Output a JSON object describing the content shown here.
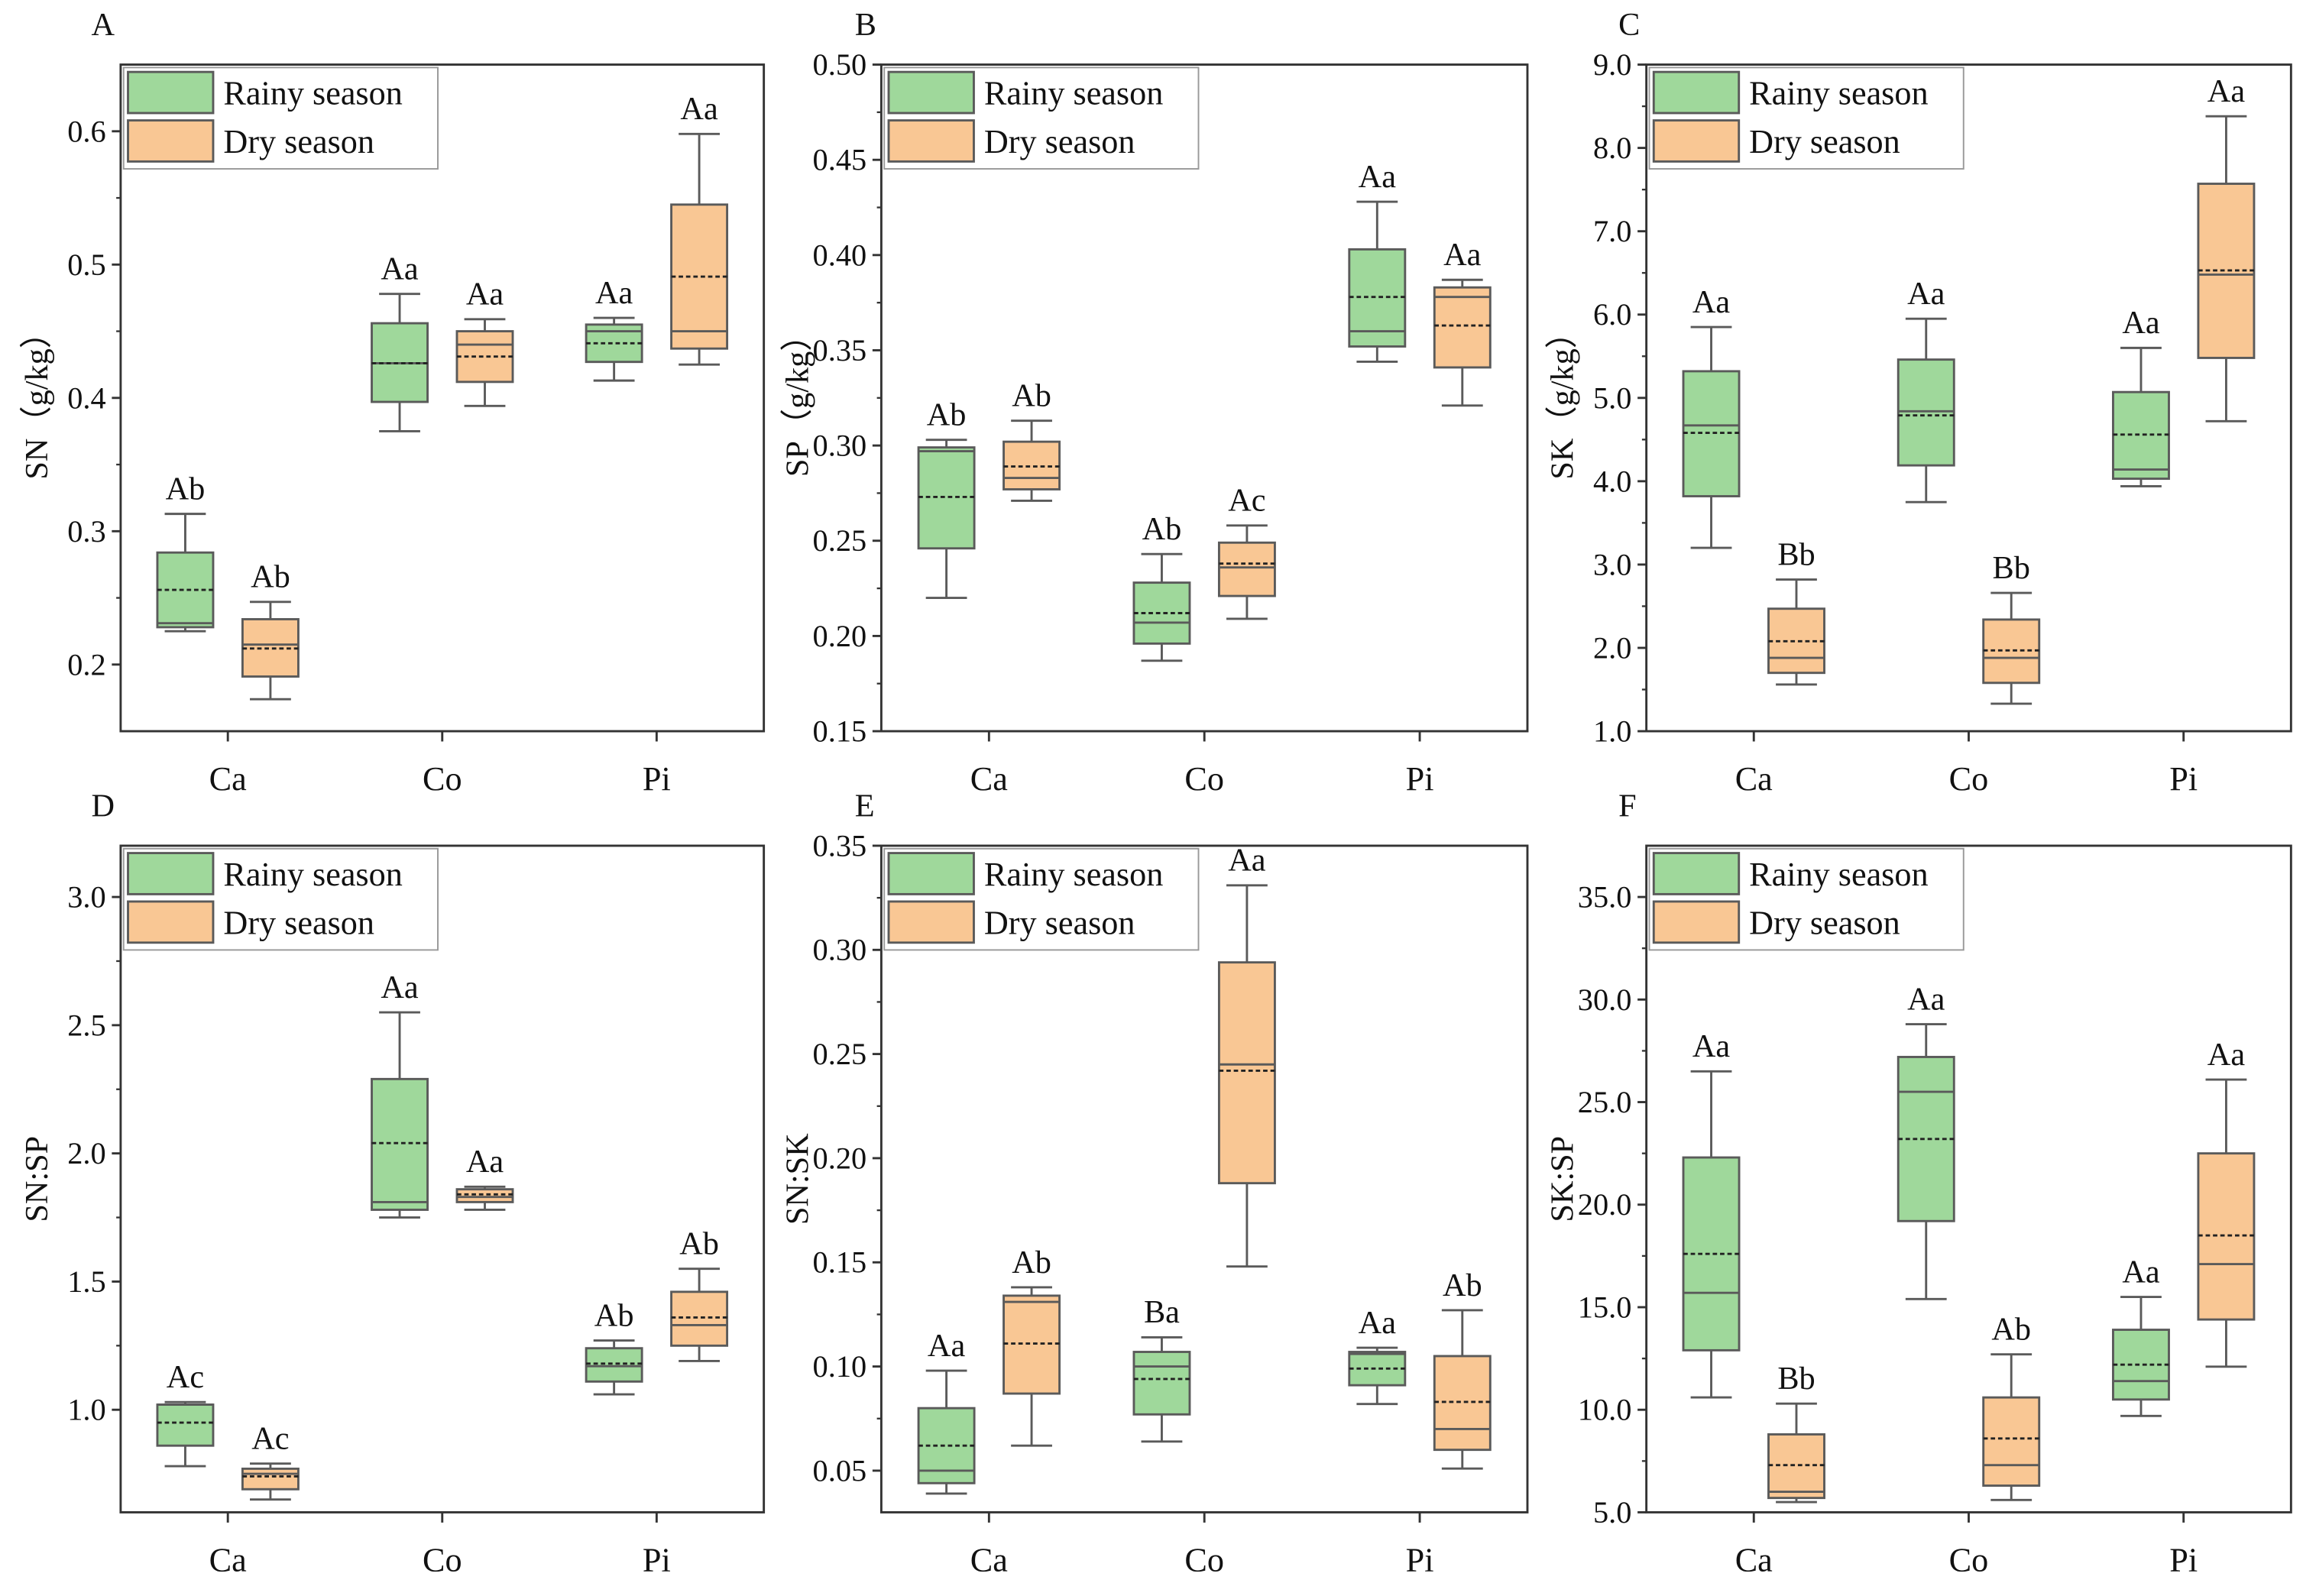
{
  "colors": {
    "rainy": "#9fd89b",
    "dry": "#f9c794",
    "stroke": "#5a5a5a",
    "axis": "#333333"
  },
  "legend": {
    "rainy": "Rainy season",
    "dry": "Dry season",
    "placement": "top-left"
  },
  "chart_data": [
    {
      "panel": "A",
      "type": "box",
      "ylabel": "SN（g/kg）",
      "ylim": [
        0.15,
        0.65
      ],
      "yticks": [
        0.2,
        0.3,
        0.4,
        0.5,
        0.6
      ],
      "ytick_labels": [
        "0.2",
        "0.3",
        "0.4",
        "0.5",
        "0.6"
      ],
      "categories": [
        "Ca",
        "Co",
        "Pi"
      ],
      "series": [
        {
          "name": "Rainy season",
          "boxes": [
            {
              "min": 0.225,
              "q1": 0.228,
              "median": 0.231,
              "mean": 0.256,
              "q3": 0.284,
              "max": 0.313,
              "label": "Ab"
            },
            {
              "min": 0.375,
              "q1": 0.397,
              "median": 0.426,
              "mean": 0.426,
              "q3": 0.456,
              "max": 0.478,
              "label": "Aa"
            },
            {
              "min": 0.413,
              "q1": 0.427,
              "median": 0.45,
              "mean": 0.441,
              "q3": 0.455,
              "max": 0.46,
              "label": "Aa"
            }
          ]
        },
        {
          "name": "Dry season",
          "boxes": [
            {
              "min": 0.174,
              "q1": 0.191,
              "median": 0.215,
              "mean": 0.212,
              "q3": 0.234,
              "max": 0.247,
              "label": "Ab"
            },
            {
              "min": 0.394,
              "q1": 0.412,
              "median": 0.44,
              "mean": 0.431,
              "q3": 0.45,
              "max": 0.459,
              "label": "Aa"
            },
            {
              "min": 0.425,
              "q1": 0.437,
              "median": 0.45,
              "mean": 0.491,
              "q3": 0.545,
              "max": 0.598,
              "label": "Aa"
            }
          ]
        }
      ]
    },
    {
      "panel": "B",
      "type": "box",
      "ylabel": "SP（g/kg）",
      "ylim": [
        0.15,
        0.5
      ],
      "yticks": [
        0.15,
        0.2,
        0.25,
        0.3,
        0.35,
        0.4,
        0.45,
        0.5
      ],
      "ytick_labels": [
        "0.15",
        "0.20",
        "0.25",
        "0.30",
        "0.35",
        "0.40",
        "0.45",
        "0.50"
      ],
      "categories": [
        "Ca",
        "Co",
        "Pi"
      ],
      "series": [
        {
          "name": "Rainy season",
          "boxes": [
            {
              "min": 0.22,
              "q1": 0.246,
              "median": 0.297,
              "mean": 0.273,
              "q3": 0.299,
              "max": 0.303,
              "label": "Ab"
            },
            {
              "min": 0.187,
              "q1": 0.196,
              "median": 0.207,
              "mean": 0.212,
              "q3": 0.228,
              "max": 0.243,
              "label": "Ab"
            },
            {
              "min": 0.344,
              "q1": 0.352,
              "median": 0.36,
              "mean": 0.378,
              "q3": 0.403,
              "max": 0.428,
              "label": "Aa"
            }
          ]
        },
        {
          "name": "Dry season",
          "boxes": [
            {
              "min": 0.271,
              "q1": 0.277,
              "median": 0.283,
              "mean": 0.289,
              "q3": 0.302,
              "max": 0.313,
              "label": "Ab"
            },
            {
              "min": 0.209,
              "q1": 0.221,
              "median": 0.236,
              "mean": 0.238,
              "q3": 0.249,
              "max": 0.258,
              "label": "Ac"
            },
            {
              "min": 0.321,
              "q1": 0.341,
              "median": 0.378,
              "mean": 0.363,
              "q3": 0.383,
              "max": 0.387,
              "label": "Aa"
            }
          ]
        }
      ]
    },
    {
      "panel": "C",
      "type": "box",
      "ylabel": "SK（g/kg）",
      "ylim": [
        1.0,
        9.0
      ],
      "yticks": [
        1,
        2,
        3,
        4,
        5,
        6,
        7,
        8,
        9
      ],
      "ytick_labels": [
        "1.0",
        "2.0",
        "3.0",
        "4.0",
        "5.0",
        "6.0",
        "7.0",
        "8.0",
        "9.0"
      ],
      "categories": [
        "Ca",
        "Co",
        "Pi"
      ],
      "series": [
        {
          "name": "Rainy season",
          "boxes": [
            {
              "min": 3.2,
              "q1": 3.82,
              "median": 4.67,
              "mean": 4.58,
              "q3": 5.32,
              "max": 5.85,
              "label": "Aa"
            },
            {
              "min": 3.75,
              "q1": 4.19,
              "median": 4.84,
              "mean": 4.79,
              "q3": 5.46,
              "max": 5.95,
              "label": "Aa"
            },
            {
              "min": 3.94,
              "q1": 4.03,
              "median": 4.14,
              "mean": 4.56,
              "q3": 5.07,
              "max": 5.6,
              "label": "Aa"
            }
          ]
        },
        {
          "name": "Dry season",
          "boxes": [
            {
              "min": 1.56,
              "q1": 1.7,
              "median": 1.88,
              "mean": 2.08,
              "q3": 2.47,
              "max": 2.82,
              "label": "Bb"
            },
            {
              "min": 1.33,
              "q1": 1.58,
              "median": 1.88,
              "mean": 1.97,
              "q3": 2.34,
              "max": 2.66,
              "label": "Bb"
            },
            {
              "min": 4.72,
              "q1": 5.48,
              "median": 6.48,
              "mean": 6.53,
              "q3": 7.57,
              "max": 8.38,
              "label": "Aa"
            }
          ]
        }
      ]
    },
    {
      "panel": "D",
      "type": "box",
      "ylabel": "SN:SP",
      "ylim": [
        0.6,
        3.2
      ],
      "yticks": [
        1.0,
        1.5,
        2.0,
        2.5,
        3.0
      ],
      "ytick_labels": [
        "1.0",
        "1.5",
        "2.0",
        "2.5",
        "3.0"
      ],
      "categories": [
        "Ca",
        "Co",
        "Pi"
      ],
      "series": [
        {
          "name": "Rainy season",
          "boxes": [
            {
              "min": 0.78,
              "q1": 0.86,
              "median": 1.02,
              "mean": 0.95,
              "q3": 1.02,
              "max": 1.03,
              "label": "Ac"
            },
            {
              "min": 1.75,
              "q1": 1.78,
              "median": 1.81,
              "mean": 2.04,
              "q3": 2.29,
              "max": 2.55,
              "label": "Aa"
            },
            {
              "min": 1.06,
              "q1": 1.11,
              "median": 1.17,
              "mean": 1.18,
              "q3": 1.24,
              "max": 1.27,
              "label": "Ab"
            }
          ]
        },
        {
          "name": "Dry season",
          "boxes": [
            {
              "min": 0.65,
              "q1": 0.69,
              "median": 0.75,
              "mean": 0.74,
              "q3": 0.77,
              "max": 0.79,
              "label": "Ac"
            },
            {
              "min": 1.78,
              "q1": 1.81,
              "median": 1.83,
              "mean": 1.84,
              "q3": 1.86,
              "max": 1.87,
              "label": "Aa"
            },
            {
              "min": 1.19,
              "q1": 1.25,
              "median": 1.33,
              "mean": 1.36,
              "q3": 1.46,
              "max": 1.55,
              "label": "Ab"
            }
          ]
        }
      ]
    },
    {
      "panel": "E",
      "type": "box",
      "ylabel": "SN:SK",
      "ylim": [
        0.03,
        0.35
      ],
      "yticks": [
        0.05,
        0.1,
        0.15,
        0.2,
        0.25,
        0.3,
        0.35
      ],
      "ytick_labels": [
        "0.05",
        "0.10",
        "0.15",
        "0.20",
        "0.25",
        "0.30",
        "0.35"
      ],
      "categories": [
        "Ca",
        "Co",
        "Pi"
      ],
      "series": [
        {
          "name": "Rainy season",
          "boxes": [
            {
              "min": 0.039,
              "q1": 0.044,
              "median": 0.05,
              "mean": 0.062,
              "q3": 0.08,
              "max": 0.098,
              "label": "Aa"
            },
            {
              "min": 0.064,
              "q1": 0.077,
              "median": 0.1,
              "mean": 0.094,
              "q3": 0.107,
              "max": 0.114,
              "label": "Ba"
            },
            {
              "min": 0.082,
              "q1": 0.091,
              "median": 0.106,
              "mean": 0.099,
              "q3": 0.107,
              "max": 0.109,
              "label": "Aa"
            }
          ]
        },
        {
          "name": "Dry season",
          "boxes": [
            {
              "min": 0.062,
              "q1": 0.087,
              "median": 0.131,
              "mean": 0.111,
              "q3": 0.134,
              "max": 0.138,
              "label": "Ab"
            },
            {
              "min": 0.148,
              "q1": 0.188,
              "median": 0.245,
              "mean": 0.242,
              "q3": 0.294,
              "max": 0.331,
              "label": "Aa"
            },
            {
              "min": 0.051,
              "q1": 0.06,
              "median": 0.07,
              "mean": 0.083,
              "q3": 0.105,
              "max": 0.127,
              "label": "Ab"
            }
          ]
        }
      ]
    },
    {
      "panel": "F",
      "type": "box",
      "ylabel": "SK:SP",
      "ylim": [
        5.0,
        37.5
      ],
      "yticks": [
        5,
        10,
        15,
        20,
        25,
        30,
        35
      ],
      "ytick_labels": [
        "5.0",
        "10.0",
        "15.0",
        "20.0",
        "25.0",
        "30.0",
        "35.0"
      ],
      "categories": [
        "Ca",
        "Co",
        "Pi"
      ],
      "series": [
        {
          "name": "Rainy season",
          "boxes": [
            {
              "min": 10.6,
              "q1": 12.9,
              "median": 15.7,
              "mean": 17.6,
              "q3": 22.3,
              "max": 26.5,
              "label": "Aa"
            },
            {
              "min": 15.4,
              "q1": 19.2,
              "median": 25.5,
              "mean": 23.2,
              "q3": 27.2,
              "max": 28.8,
              "label": "Aa"
            },
            {
              "min": 9.7,
              "q1": 10.5,
              "median": 11.4,
              "mean": 12.2,
              "q3": 13.9,
              "max": 15.5,
              "label": "Aa"
            }
          ]
        },
        {
          "name": "Dry season",
          "boxes": [
            {
              "min": 5.5,
              "q1": 5.7,
              "median": 6.0,
              "mean": 7.3,
              "q3": 8.8,
              "max": 10.3,
              "label": "Bb"
            },
            {
              "min": 5.6,
              "q1": 6.3,
              "median": 7.3,
              "mean": 8.6,
              "q3": 10.6,
              "max": 12.7,
              "label": "Ab"
            },
            {
              "min": 12.1,
              "q1": 14.4,
              "median": 17.1,
              "mean": 18.5,
              "q3": 22.5,
              "max": 26.1,
              "label": "Aa"
            }
          ]
        }
      ]
    }
  ]
}
